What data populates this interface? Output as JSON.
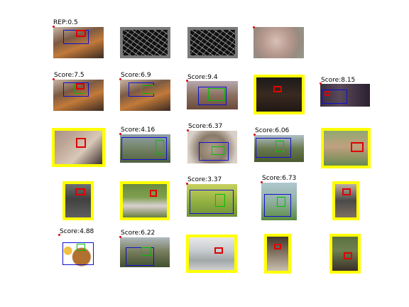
{
  "rep_label": "REP:0.5",
  "colors": {
    "highlight_border": "#ffff00",
    "box_blue": "#1010d0",
    "box_red": "#e00000",
    "box_green": "#00c000"
  },
  "rows": [
    [
      {
        "label": "REP:0.5",
        "selected": false
      },
      {
        "label": "",
        "selected": false
      },
      {
        "label": "",
        "selected": false
      },
      {
        "label": "",
        "selected": false
      }
    ],
    [
      {
        "label": "Score:7.5",
        "selected": false
      },
      {
        "label": "Score:6.9",
        "selected": false
      },
      {
        "label": "Score:9.4",
        "selected": false
      },
      {
        "label": "",
        "selected": true
      },
      {
        "label": "Score:8.15",
        "selected": false
      }
    ],
    [
      {
        "label": "",
        "selected": true
      },
      {
        "label": "Score:4.16",
        "selected": false
      },
      {
        "label": "Score:6.37",
        "selected": false
      },
      {
        "label": "Score:6.06",
        "selected": false
      },
      {
        "label": "",
        "selected": true
      }
    ],
    [
      {
        "label": "",
        "selected": true
      },
      {
        "label": "",
        "selected": true
      },
      {
        "label": "Score:3.37",
        "selected": false
      },
      {
        "label": "Score:6.73",
        "selected": false
      },
      {
        "label": "",
        "selected": true
      }
    ],
    [
      {
        "label": "Score:4.88",
        "selected": false
      },
      {
        "label": "Score:6.22",
        "selected": false
      },
      {
        "label": "",
        "selected": true
      },
      {
        "label": "",
        "selected": true
      },
      {
        "label": "",
        "selected": true
      }
    ]
  ]
}
